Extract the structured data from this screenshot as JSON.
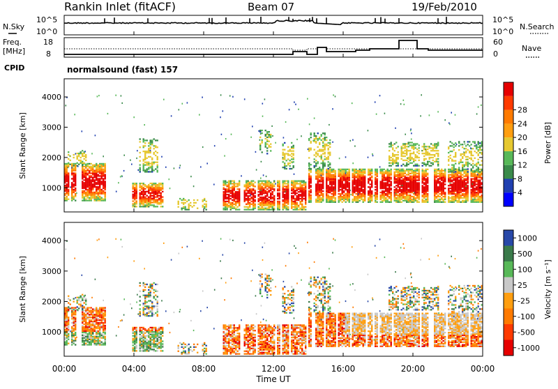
{
  "header": {
    "station": "Rankin Inlet (fitACF)",
    "beam": "Beam 07",
    "date": "19/Feb/2010"
  },
  "strip_labels": {
    "nsky": "N.Sky",
    "nsearch": "N.Search",
    "freq": "Freq.",
    "freq_unit": "[MHz]",
    "cpid": "CPID",
    "nave": "Nave",
    "nsky_hi": "10^5",
    "nsky_lo": "10^0",
    "nsearch_hi": "10^5",
    "nsearch_lo": "10^0",
    "freq_hi": "18",
    "freq_lo": "8",
    "nave_hi": "60",
    "nave_lo": "0",
    "cpid_text": "normalsound (fast) 157"
  },
  "time_axis": {
    "label": "Time UT",
    "ticks": [
      "00:00",
      "04:00",
      "08:00",
      "12:00",
      "16:00",
      "20:00",
      "00:00"
    ]
  },
  "colors": {
    "power": [
      "#0000ff",
      "#2040b0",
      "#3a8a4a",
      "#58b858",
      "#e6c830",
      "#ff9e10",
      "#ff7a00",
      "#ff3a00",
      "#e60000"
    ],
    "velocity": [
      "#2848a8",
      "#3a7a4a",
      "#58b858",
      "#c8c8c8",
      "#ff9e10",
      "#ff7a00",
      "#ff3a00",
      "#e60000"
    ]
  },
  "chart_data": [
    {
      "type": "heatmap",
      "title": "Power",
      "ylabel": "Slant Range [km]",
      "xlabel": "Time UT",
      "ylim": [
        200,
        4600
      ],
      "yticks": [
        1000,
        2000,
        3000,
        4000
      ],
      "xlim": [
        "00:00",
        "24:00"
      ],
      "colorbar": {
        "label": "Power [dB]",
        "ticks": [
          "4",
          "8",
          "12",
          "16",
          "20",
          "24",
          "28"
        ]
      }
    },
    {
      "type": "heatmap",
      "title": "Velocity",
      "ylabel": "Slant Range [km]",
      "xlabel": "Time UT",
      "ylim": [
        200,
        4600
      ],
      "yticks": [
        1000,
        2000,
        3000,
        4000
      ],
      "xlim": [
        "00:00",
        "24:00"
      ],
      "colorbar": {
        "label": "Velocity [m s⁻¹]",
        "ticks": [
          "1000",
          "500",
          "100",
          "25",
          "-25",
          "-100",
          "-500",
          "-1000"
        ]
      }
    }
  ]
}
